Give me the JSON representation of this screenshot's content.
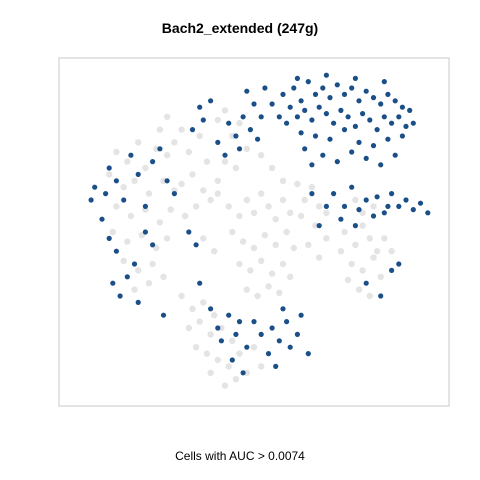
{
  "chart_data": {
    "type": "scatter",
    "title": "Bach2_extended (247g)",
    "xlabel": "Cells with AUC > 0.0074",
    "ylabel": "",
    "grid": false,
    "legend": "none",
    "colors": {
      "background_cells": "#d9d9d9",
      "auc_cells": "#1b4f88",
      "frame": "#c8c8c8"
    },
    "xlim": [
      0,
      100
    ],
    "ylim": [
      0,
      100
    ],
    "series": [
      {
        "role": "background",
        "points": [
          [
            12,
            75
          ],
          [
            15,
            72
          ],
          [
            18,
            78
          ],
          [
            20,
            70
          ],
          [
            23,
            76
          ],
          [
            26,
            74
          ],
          [
            10,
            68
          ],
          [
            14,
            64
          ],
          [
            17,
            66
          ],
          [
            21,
            62
          ],
          [
            25,
            66
          ],
          [
            28,
            63
          ],
          [
            12,
            58
          ],
          [
            16,
            55
          ],
          [
            20,
            57
          ],
          [
            24,
            53
          ],
          [
            27,
            57
          ],
          [
            11,
            50
          ],
          [
            15,
            47
          ],
          [
            19,
            49
          ],
          [
            23,
            45
          ],
          [
            26,
            48
          ],
          [
            14,
            41
          ],
          [
            18,
            38
          ],
          [
            22,
            40
          ],
          [
            25,
            36
          ],
          [
            17,
            32
          ],
          [
            21,
            34
          ],
          [
            28,
            78
          ],
          [
            30,
            82
          ],
          [
            32,
            75
          ],
          [
            35,
            80
          ],
          [
            37,
            72
          ],
          [
            33,
            68
          ],
          [
            30,
            65
          ],
          [
            36,
            63
          ],
          [
            34,
            58
          ],
          [
            31,
            55
          ],
          [
            38,
            60
          ],
          [
            40,
            85
          ],
          [
            42,
            88
          ],
          [
            44,
            80
          ],
          [
            46,
            84
          ],
          [
            48,
            76
          ],
          [
            45,
            70
          ],
          [
            42,
            72
          ],
          [
            40,
            66
          ],
          [
            40,
            62
          ],
          [
            43,
            58
          ],
          [
            46,
            55
          ],
          [
            48,
            60
          ],
          [
            50,
            56
          ],
          [
            52,
            62
          ],
          [
            54,
            58
          ],
          [
            56,
            54
          ],
          [
            58,
            60
          ],
          [
            60,
            56
          ],
          [
            44,
            50
          ],
          [
            47,
            47
          ],
          [
            50,
            45
          ],
          [
            53,
            49
          ],
          [
            56,
            46
          ],
          [
            59,
            50
          ],
          [
            61,
            45
          ],
          [
            46,
            40
          ],
          [
            49,
            38
          ],
          [
            52,
            41
          ],
          [
            55,
            37
          ],
          [
            58,
            40
          ],
          [
            60,
            36
          ],
          [
            48,
            32
          ],
          [
            51,
            30
          ],
          [
            54,
            33
          ],
          [
            57,
            31
          ],
          [
            30,
            30
          ],
          [
            33,
            26
          ],
          [
            36,
            28
          ],
          [
            39,
            24
          ],
          [
            32,
            20
          ],
          [
            35,
            22
          ],
          [
            38,
            18
          ],
          [
            41,
            20
          ],
          [
            44,
            16
          ],
          [
            34,
            14
          ],
          [
            37,
            12
          ],
          [
            40,
            10
          ],
          [
            43,
            8
          ],
          [
            46,
            12
          ],
          [
            48,
            6
          ],
          [
            45,
            4
          ],
          [
            42,
            2
          ],
          [
            50,
            14
          ],
          [
            52,
            8
          ],
          [
            38,
            6
          ],
          [
            75,
            50
          ],
          [
            78,
            46
          ],
          [
            80,
            52
          ],
          [
            82,
            48
          ],
          [
            84,
            44
          ],
          [
            77,
            40
          ],
          [
            80,
            38
          ],
          [
            83,
            42
          ],
          [
            85,
            36
          ],
          [
            79,
            32
          ],
          [
            82,
            30
          ],
          [
            76,
            35
          ],
          [
            74,
            44
          ],
          [
            86,
            48
          ],
          [
            88,
            44
          ],
          [
            80,
            56
          ],
          [
            83,
            58
          ],
          [
            78,
            60
          ],
          [
            62,
            65
          ],
          [
            64,
            60
          ],
          [
            66,
            64
          ],
          [
            68,
            58
          ],
          [
            63,
            55
          ],
          [
            67,
            52
          ],
          [
            70,
            56
          ],
          [
            26,
            86
          ],
          [
            24,
            82
          ],
          [
            55,
            70
          ],
          [
            58,
            66
          ],
          [
            52,
            74
          ],
          [
            36,
            48
          ],
          [
            39,
            44
          ],
          [
            65,
            46
          ],
          [
            68,
            42
          ],
          [
            70,
            48
          ]
        ]
      },
      {
        "role": "highlighted",
        "points": [
          [
            58,
            93
          ],
          [
            61,
            95
          ],
          [
            63,
            91
          ],
          [
            65,
            97
          ],
          [
            67,
            93
          ],
          [
            69,
            95
          ],
          [
            71,
            92
          ],
          [
            73,
            96
          ],
          [
            75,
            93
          ],
          [
            77,
            95
          ],
          [
            79,
            91
          ],
          [
            81,
            94
          ],
          [
            83,
            92
          ],
          [
            85,
            90
          ],
          [
            87,
            93
          ],
          [
            89,
            91
          ],
          [
            91,
            89
          ],
          [
            60,
            89
          ],
          [
            62,
            86
          ],
          [
            64,
            88
          ],
          [
            66,
            85
          ],
          [
            68,
            89
          ],
          [
            70,
            87
          ],
          [
            72,
            84
          ],
          [
            74,
            88
          ],
          [
            76,
            86
          ],
          [
            78,
            83
          ],
          [
            80,
            87
          ],
          [
            82,
            85
          ],
          [
            84,
            82
          ],
          [
            86,
            86
          ],
          [
            88,
            84
          ],
          [
            90,
            86
          ],
          [
            92,
            83
          ],
          [
            59,
            84
          ],
          [
            63,
            81
          ],
          [
            67,
            80
          ],
          [
            71,
            79
          ],
          [
            75,
            82
          ],
          [
            79,
            78
          ],
          [
            83,
            77
          ],
          [
            87,
            79
          ],
          [
            91,
            80
          ],
          [
            69,
            74
          ],
          [
            73,
            72
          ],
          [
            77,
            75
          ],
          [
            81,
            73
          ],
          [
            85,
            71
          ],
          [
            89,
            74
          ],
          [
            64,
            76
          ],
          [
            66,
            71
          ],
          [
            62,
            98
          ],
          [
            70,
            99
          ],
          [
            78,
            98
          ],
          [
            86,
            97
          ],
          [
            93,
            88
          ],
          [
            94,
            84
          ],
          [
            57,
            86
          ],
          [
            55,
            90
          ],
          [
            53,
            95
          ],
          [
            48,
            94
          ],
          [
            50,
            90
          ],
          [
            47,
            86
          ],
          [
            49,
            82
          ],
          [
            51,
            79
          ],
          [
            45,
            80
          ],
          [
            43,
            84
          ],
          [
            46,
            76
          ],
          [
            52,
            86
          ],
          [
            35,
            89
          ],
          [
            38,
            91
          ],
          [
            33,
            82
          ],
          [
            36,
            85
          ],
          [
            40,
            78
          ],
          [
            42,
            74
          ],
          [
            72,
            62
          ],
          [
            75,
            58
          ],
          [
            77,
            64
          ],
          [
            79,
            57
          ],
          [
            81,
            60
          ],
          [
            84,
            61
          ],
          [
            86,
            56
          ],
          [
            88,
            62
          ],
          [
            90,
            58
          ],
          [
            92,
            60
          ],
          [
            94,
            57
          ],
          [
            96,
            59
          ],
          [
            98,
            56
          ],
          [
            74,
            54
          ],
          [
            78,
            52
          ],
          [
            83,
            55
          ],
          [
            87,
            58
          ],
          [
            68,
            52
          ],
          [
            70,
            58
          ],
          [
            66,
            62
          ],
          [
            6,
            64
          ],
          [
            5,
            60
          ],
          [
            8,
            54
          ],
          [
            9,
            62
          ],
          [
            10,
            70
          ],
          [
            12,
            66
          ],
          [
            14,
            60
          ],
          [
            16,
            74
          ],
          [
            18,
            68
          ],
          [
            20,
            58
          ],
          [
            22,
            72
          ],
          [
            24,
            76
          ],
          [
            26,
            66
          ],
          [
            28,
            62
          ],
          [
            10,
            48
          ],
          [
            12,
            44
          ],
          [
            15,
            36
          ],
          [
            17,
            40
          ],
          [
            11,
            34
          ],
          [
            13,
            30
          ],
          [
            20,
            50
          ],
          [
            22,
            46
          ],
          [
            18,
            28
          ],
          [
            25,
            24
          ],
          [
            32,
            50
          ],
          [
            34,
            46
          ],
          [
            35,
            34
          ],
          [
            38,
            26
          ],
          [
            40,
            20
          ],
          [
            41,
            16
          ],
          [
            43,
            24
          ],
          [
            45,
            18
          ],
          [
            46,
            22
          ],
          [
            48,
            14
          ],
          [
            50,
            22
          ],
          [
            52,
            18
          ],
          [
            54,
            12
          ],
          [
            55,
            20
          ],
          [
            57,
            16
          ],
          [
            59,
            22
          ],
          [
            60,
            14
          ],
          [
            62,
            18
          ],
          [
            63,
            24
          ],
          [
            65,
            12
          ],
          [
            56,
            8
          ],
          [
            58,
            26
          ],
          [
            44,
            10
          ],
          [
            47,
            6
          ],
          [
            81,
            34
          ],
          [
            85,
            30
          ],
          [
            88,
            38
          ],
          [
            90,
            40
          ]
        ]
      }
    ]
  }
}
